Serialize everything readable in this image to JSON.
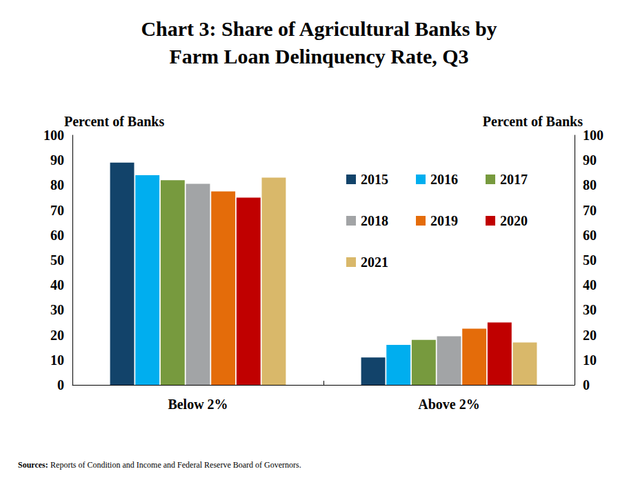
{
  "chart_data": {
    "type": "bar",
    "title": "Chart 3: Share of Agricultural Banks by\nFarm Loan Delinquency Rate, Q3",
    "ylabel": "Percent of Banks",
    "y2label": "Percent of Banks",
    "source_label": "Sources:",
    "source": "Reports of Condition and Income and Federal Reserve Board of Governors.",
    "categories": [
      "Below 2%",
      "Above 2%"
    ],
    "series": [
      {
        "name": "2015",
        "color": "#12436a",
        "values": [
          89,
          11
        ]
      },
      {
        "name": "2016",
        "color": "#00aeef",
        "values": [
          84,
          16
        ]
      },
      {
        "name": "2017",
        "color": "#779a3e",
        "values": [
          82,
          18
        ]
      },
      {
        "name": "2018",
        "color": "#a2a4a6",
        "values": [
          80.5,
          19.5
        ]
      },
      {
        "name": "2019",
        "color": "#e46c0a",
        "values": [
          77.5,
          22.5
        ]
      },
      {
        "name": "2020",
        "color": "#c00000",
        "values": [
          75,
          25
        ]
      },
      {
        "name": "2021",
        "color": "#d9b86a",
        "values": [
          83,
          17
        ]
      }
    ],
    "ylim": [
      0,
      100
    ],
    "yticks": [
      0,
      10,
      20,
      30,
      40,
      50,
      60,
      70,
      80,
      90,
      100
    ],
    "y2lim": [
      0,
      100
    ],
    "y2ticks": [
      0,
      10,
      20,
      30,
      40,
      50,
      60,
      70,
      80,
      90,
      100
    ],
    "grid": false,
    "legend": "upper right"
  }
}
